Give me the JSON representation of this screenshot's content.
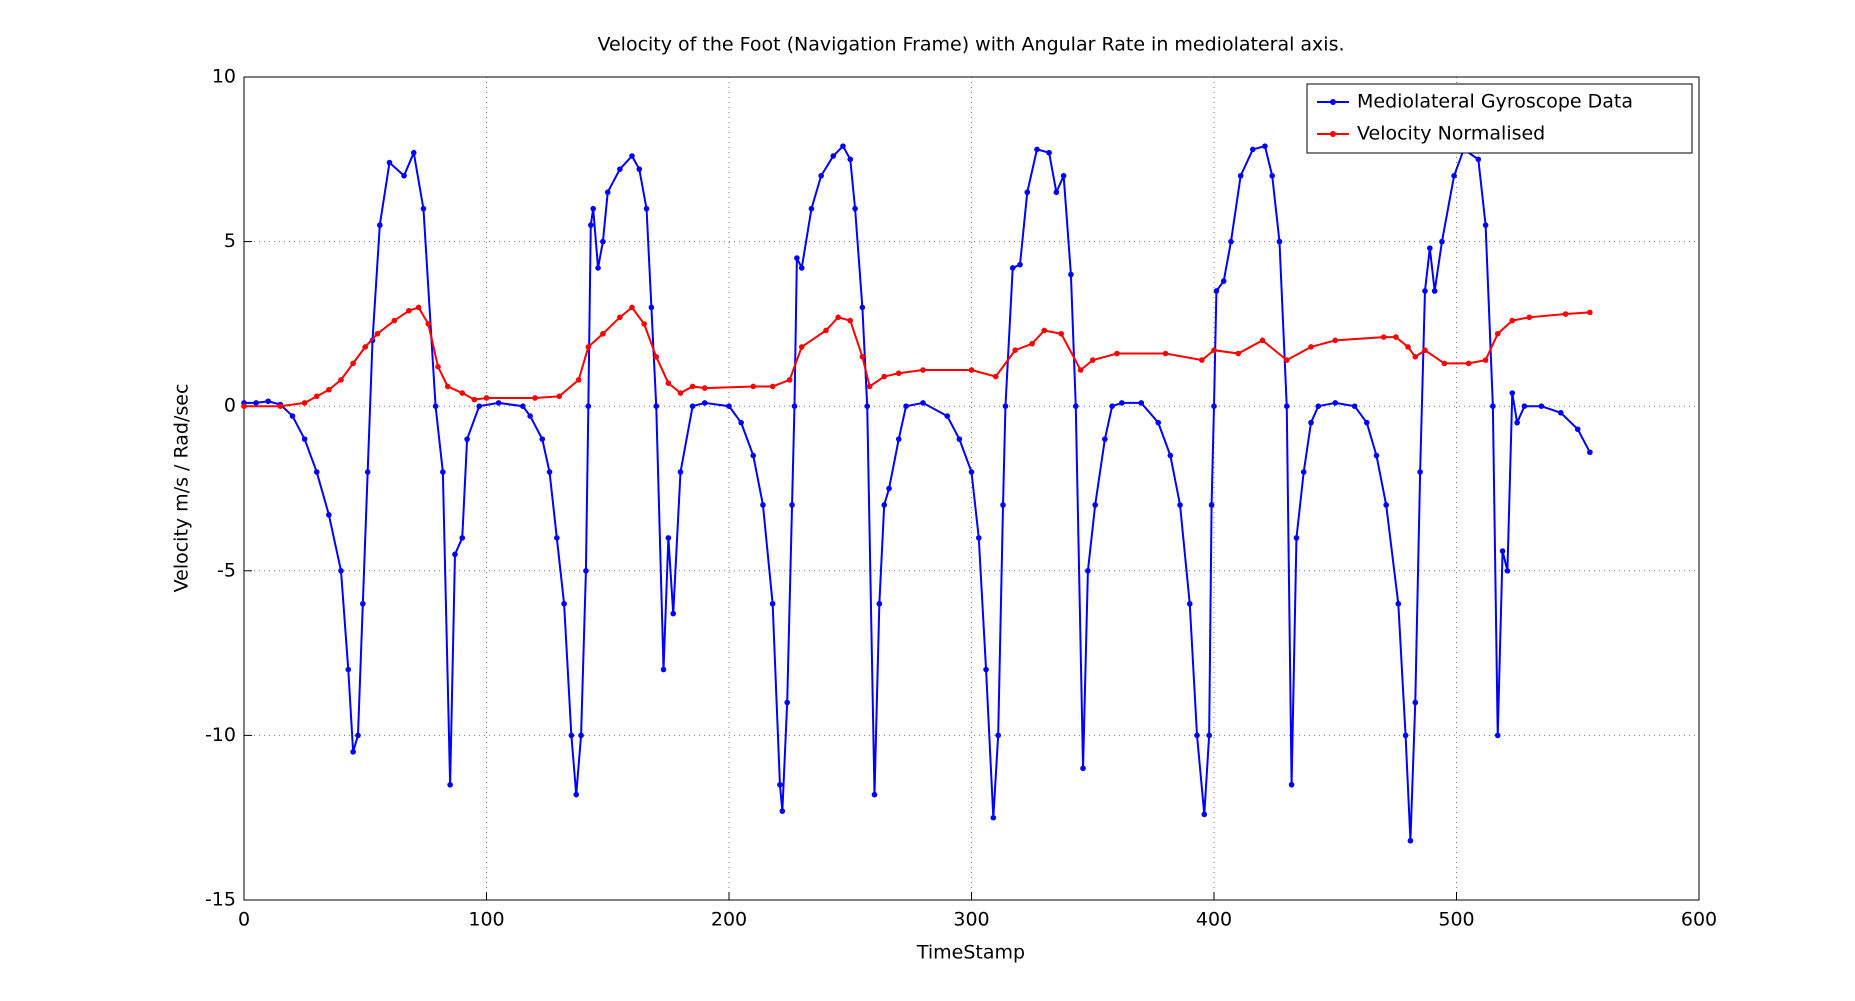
{
  "chart_data": {
    "type": "line",
    "title": "Velocity of the Foot (Navigation Frame) with Angular Rate in mediolateral axis.",
    "x_label": "TimeStamp",
    "y_label": "Velocity m/s / Rad/sec",
    "xlim": [
      0,
      600
    ],
    "xticks": [
      0,
      100,
      200,
      300,
      400,
      500,
      600
    ],
    "ylim": [
      -15,
      10
    ],
    "yticks": [
      -15,
      -10,
      -5,
      0,
      5,
      10
    ],
    "grid": true,
    "legend": "upper right",
    "series": [
      {
        "name": "Mediolateral Gyroscope Data",
        "color": "#0000ff",
        "x": [
          0,
          5,
          10,
          15,
          20,
          25,
          30,
          35,
          40,
          43,
          45,
          47,
          49,
          51,
          53,
          56,
          60,
          66,
          70,
          74,
          79,
          82,
          85,
          87,
          90,
          92,
          97,
          105,
          115,
          118,
          123,
          126,
          129,
          132,
          135,
          137,
          139,
          141,
          142,
          143,
          144,
          146,
          148,
          150,
          155,
          160,
          163,
          166,
          168,
          170,
          173,
          175,
          177,
          180,
          185,
          190,
          200,
          205,
          210,
          214,
          218,
          221,
          222,
          224,
          226,
          227,
          228,
          230,
          234,
          238,
          243,
          247,
          250,
          252,
          255,
          257,
          260,
          262,
          264,
          266,
          270,
          273,
          280,
          290,
          295,
          300,
          303,
          306,
          309,
          311,
          313,
          314,
          317,
          320,
          323,
          327,
          332,
          335,
          338,
          341,
          343,
          346,
          348,
          351,
          355,
          358,
          362,
          370,
          377,
          382,
          386,
          390,
          393,
          396,
          398,
          399,
          400,
          401,
          404,
          407,
          411,
          416,
          421,
          424,
          427,
          430,
          432,
          434,
          437,
          440,
          443,
          450,
          458,
          463,
          467,
          471,
          476,
          479,
          481,
          483,
          485,
          487,
          489,
          491,
          494,
          499,
          503,
          509,
          512,
          515,
          517,
          519,
          521,
          523,
          525,
          528,
          535,
          543,
          550,
          555
        ],
        "values": [
          0.1,
          0.1,
          0.15,
          0.05,
          -0.3,
          -1,
          -2,
          -3.3,
          -5,
          -8,
          -10.5,
          -10,
          -6,
          -2,
          2,
          5.5,
          7.4,
          7.0,
          7.7,
          6,
          0,
          -2,
          -11.5,
          -4.5,
          -4,
          -1,
          0,
          0.1,
          0,
          -0.3,
          -1,
          -2,
          -4,
          -6,
          -10,
          -11.8,
          -10,
          -5,
          0,
          5.5,
          6,
          4.2,
          5,
          6.5,
          7.2,
          7.6,
          7.2,
          6,
          3,
          0,
          -8,
          -4,
          -6.3,
          -2,
          0,
          0.1,
          0,
          -0.5,
          -1.5,
          -3,
          -6,
          -11.5,
          -12.3,
          -9,
          -3,
          0,
          4.5,
          4.2,
          6,
          7,
          7.6,
          7.9,
          7.5,
          6,
          3,
          0,
          -11.8,
          -6,
          -3,
          -2.5,
          -1,
          0,
          0.1,
          -0.3,
          -1,
          -2,
          -4,
          -8,
          -12.5,
          -10,
          -3,
          0,
          4.2,
          4.3,
          6.5,
          7.8,
          7.7,
          6.5,
          7,
          4,
          0,
          -11,
          -5,
          -3,
          -1,
          0,
          0.1,
          0.1,
          -0.5,
          -1.5,
          -3,
          -6,
          -10,
          -12.4,
          -10,
          -3,
          0,
          3.5,
          3.8,
          5,
          7,
          7.8,
          7.9,
          7,
          5,
          0,
          -11.5,
          -4,
          -2,
          -0.5,
          0,
          0.1,
          0,
          -0.5,
          -1.5,
          -3,
          -6,
          -10,
          -13.2,
          -9,
          -2,
          3.5,
          4.8,
          3.5,
          5,
          7,
          7.8,
          7.5,
          5.5,
          0,
          -10,
          -4.4,
          -5,
          0.4,
          -0.5,
          0,
          0,
          -0.2,
          -0.7,
          -1.4
        ]
      },
      {
        "name": "Velocity Normalised",
        "color": "#ff0000",
        "x": [
          0,
          15,
          25,
          30,
          35,
          40,
          45,
          50,
          55,
          62,
          68,
          72,
          76,
          80,
          84,
          90,
          95,
          100,
          120,
          130,
          138,
          142,
          148,
          155,
          160,
          165,
          170,
          175,
          180,
          185,
          190,
          210,
          218,
          225,
          230,
          240,
          245,
          250,
          255,
          258,
          264,
          270,
          280,
          300,
          310,
          318,
          325,
          330,
          337,
          345,
          350,
          360,
          380,
          395,
          400,
          410,
          420,
          430,
          440,
          450,
          470,
          475,
          480,
          483,
          487,
          495,
          505,
          512,
          517,
          523,
          530,
          545,
          555
        ],
        "values": [
          0,
          0,
          0.1,
          0.3,
          0.5,
          0.8,
          1.3,
          1.8,
          2.2,
          2.6,
          2.9,
          3.0,
          2.5,
          1.2,
          0.6,
          0.4,
          0.2,
          0.25,
          0.25,
          0.3,
          0.8,
          1.8,
          2.2,
          2.7,
          3.0,
          2.5,
          1.5,
          0.7,
          0.4,
          0.6,
          0.55,
          0.6,
          0.6,
          0.8,
          1.8,
          2.3,
          2.7,
          2.6,
          1.5,
          0.6,
          0.9,
          1.0,
          1.1,
          1.1,
          0.9,
          1.7,
          1.9,
          2.3,
          2.2,
          1.1,
          1.4,
          1.6,
          1.6,
          1.4,
          1.7,
          1.6,
          2.0,
          1.4,
          1.8,
          2.0,
          2.1,
          2.1,
          1.8,
          1.5,
          1.7,
          1.3,
          1.3,
          1.4,
          2.2,
          2.6,
          2.7,
          2.8,
          2.85
        ]
      }
    ]
  }
}
